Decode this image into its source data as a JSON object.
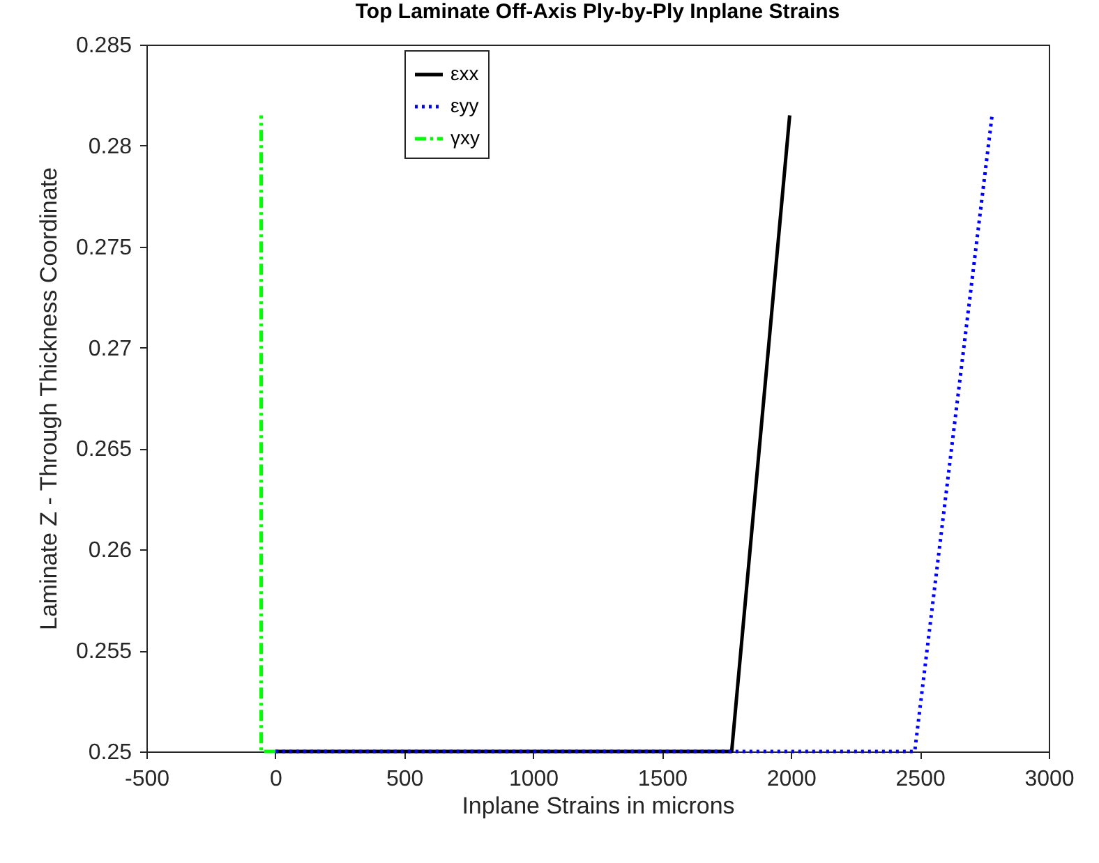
{
  "chart_data": {
    "type": "line",
    "title": "Top Laminate Off-Axis Ply-by-Ply Inplane Strains",
    "xlabel": "Inplane Strains in microns",
    "ylabel": "Laminate Z - Through Thickness Coordinate",
    "xlim": [
      -500,
      3000
    ],
    "xticks": [
      -500,
      0,
      500,
      1000,
      1500,
      2000,
      2500,
      3000
    ],
    "ylim": [
      0.25,
      0.285
    ],
    "yticks": [
      0.25,
      0.255,
      0.26,
      0.265,
      0.27,
      0.275,
      0.28,
      0.285
    ],
    "grid": false,
    "legend": "top left",
    "marker": "none",
    "series": [
      {
        "name": "εxx",
        "color": "#000000",
        "line_style": "solid",
        "x": [
          0,
          1770,
          1995
        ],
        "values": [
          0.25,
          0.25,
          0.2815
        ]
      },
      {
        "name": "εyy",
        "color": "#0000ff",
        "line_style": "dotted",
        "x": [
          0,
          2480,
          2780
        ],
        "values": [
          0.25,
          0.25,
          0.2815
        ]
      },
      {
        "name": "γxy",
        "color": "#00ff00",
        "line_style": "dashdot",
        "x": [
          0,
          -55,
          -55
        ],
        "values": [
          0.25,
          0.25,
          0.2815
        ]
      }
    ]
  }
}
